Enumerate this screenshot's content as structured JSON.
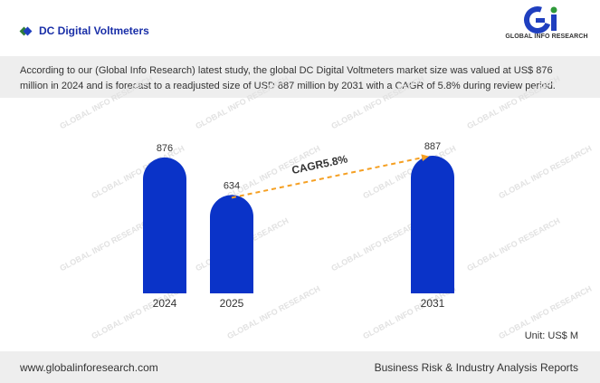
{
  "header": {
    "title": "DC Digital Voltmeters",
    "logo_text": "GLOBAL INFO RESEARCH",
    "logo_glyph": "Gi",
    "accent_color": "#1a2fa8"
  },
  "description": "According to our (Global Info Research) latest study, the global DC Digital Voltmeters market size was valued at US$ 876 million in 2024 and is forecast to a readjusted size of USD 887 million by 2031 with a CAGR of 5.8% during review period.",
  "unit_label": "Unit: US$ M",
  "watermark_text": "GLOBAL INFO RESEARCH",
  "footer": {
    "website": "www.globalinforesearch.com",
    "tagline": "Business Risk & Industry Analysis Reports"
  },
  "chart_data": {
    "type": "bar",
    "categories": [
      "2024",
      "2025",
      "2031"
    ],
    "values": [
      876,
      634,
      887
    ],
    "bar_color": "#0a33c8",
    "annotation": {
      "label": "CAGR5.8%",
      "from_category": "2025",
      "to_category": "2031",
      "color": "#f5a023",
      "style": "dashed-arrow"
    },
    "ylim": [
      0,
      887
    ],
    "grid": false,
    "legend": "none"
  }
}
